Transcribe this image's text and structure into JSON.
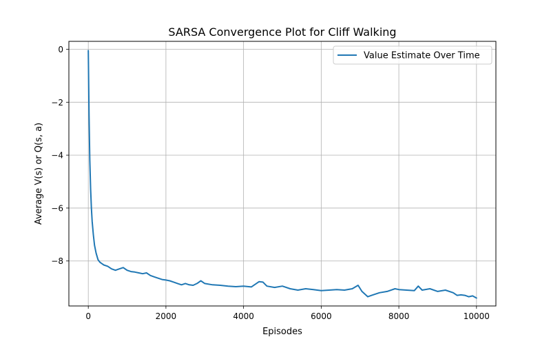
{
  "chart_data": {
    "type": "line",
    "title": "SARSA Convergence Plot for Cliff Walking",
    "xlabel": "Episodes",
    "ylabel": "Average V(s) or Q(s, a)",
    "xlim": [
      -500,
      10500
    ],
    "ylim": [
      -9.7,
      0.3
    ],
    "xticks": [
      0,
      2000,
      4000,
      6000,
      8000,
      10000
    ],
    "xtick_labels": [
      "0",
      "2000",
      "4000",
      "6000",
      "8000",
      "10000"
    ],
    "yticks": [
      0,
      -2,
      -4,
      -6,
      -8
    ],
    "ytick_labels": [
      "0",
      "−2",
      "−4",
      "−6",
      "−8"
    ],
    "grid": true,
    "legend_position": "top-right",
    "series": [
      {
        "name": "Value Estimate Over Time",
        "color": "#1f77b4",
        "x": [
          0,
          20,
          40,
          60,
          80,
          100,
          130,
          160,
          200,
          250,
          300,
          350,
          400,
          500,
          600,
          700,
          800,
          900,
          1000,
          1100,
          1200,
          1300,
          1400,
          1500,
          1600,
          1700,
          1800,
          1900,
          2000,
          2100,
          2200,
          2300,
          2400,
          2500,
          2600,
          2700,
          2800,
          2900,
          3000,
          3200,
          3400,
          3600,
          3800,
          4000,
          4200,
          4400,
          4500,
          4600,
          4800,
          5000,
          5200,
          5400,
          5600,
          5800,
          6000,
          6200,
          6400,
          6600,
          6800,
          6950,
          7050,
          7200,
          7300,
          7500,
          7700,
          7900,
          8000,
          8200,
          8400,
          8500,
          8600,
          8800,
          9000,
          9200,
          9400,
          9500,
          9600,
          9700,
          9800,
          9900,
          10000
        ],
        "y": [
          -0.05,
          -2.5,
          -4.2,
          -5.3,
          -6.0,
          -6.5,
          -7.0,
          -7.4,
          -7.7,
          -7.95,
          -8.05,
          -8.1,
          -8.15,
          -8.2,
          -8.3,
          -8.35,
          -8.3,
          -8.25,
          -8.35,
          -8.4,
          -8.42,
          -8.45,
          -8.48,
          -8.45,
          -8.55,
          -8.6,
          -8.65,
          -8.7,
          -8.72,
          -8.75,
          -8.8,
          -8.85,
          -8.9,
          -8.85,
          -8.9,
          -8.92,
          -8.85,
          -8.75,
          -8.85,
          -8.9,
          -8.92,
          -8.95,
          -8.97,
          -8.95,
          -8.98,
          -8.78,
          -8.8,
          -8.95,
          -9.0,
          -8.95,
          -9.05,
          -9.1,
          -9.05,
          -9.08,
          -9.12,
          -9.1,
          -9.08,
          -9.1,
          -9.05,
          -8.92,
          -9.15,
          -9.35,
          -9.3,
          -9.2,
          -9.15,
          -9.05,
          -9.08,
          -9.1,
          -9.12,
          -8.95,
          -9.1,
          -9.05,
          -9.15,
          -9.1,
          -9.2,
          -9.3,
          -9.28,
          -9.3,
          -9.35,
          -9.32,
          -9.4
        ]
      }
    ]
  }
}
